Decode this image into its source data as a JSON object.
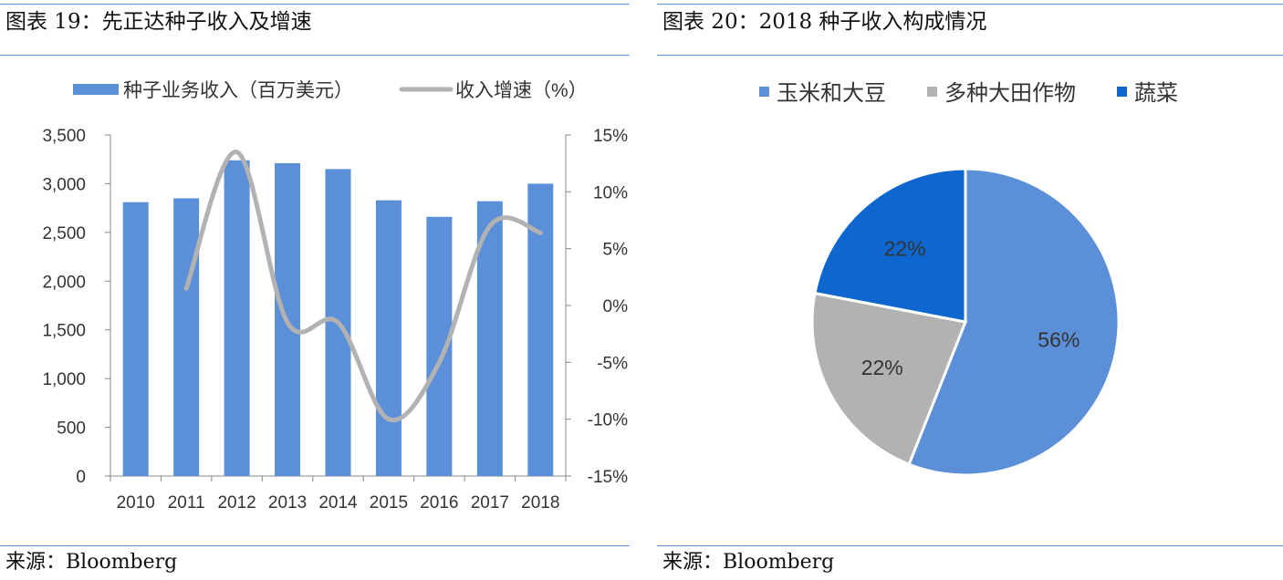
{
  "panels": [
    {
      "title": "图表 19：先正达种子收入及增速",
      "source": "来源：Bloomberg",
      "chart_data": {
        "type": "bar",
        "categories": [
          "2010",
          "2011",
          "2012",
          "2013",
          "2014",
          "2015",
          "2016",
          "2017",
          "2018"
        ],
        "series": [
          {
            "name": "种子业务收入（百万美元）",
            "type": "bar",
            "axis": "left",
            "color": "#5B8FD7",
            "values": [
              2810,
              2850,
              3240,
              3210,
              3150,
              2830,
              2660,
              2820,
              3000
            ]
          },
          {
            "name": "收入增速（%）",
            "type": "line",
            "axis": "right",
            "color": "#B2B2B2",
            "values": [
              null,
              1.5,
              13.5,
              -1.5,
              -1.5,
              -10.0,
              -5.0,
              7.0,
              6.4
            ]
          }
        ],
        "y_left": {
          "min": 0,
          "max": 3500,
          "ticks": [
            "0",
            "500",
            "1,000",
            "1,500",
            "2,000",
            "2,500",
            "3,000",
            "3,500"
          ]
        },
        "y_right": {
          "min": -15,
          "max": 15,
          "ticks": [
            "-15%",
            "-10%",
            "-5%",
            "0%",
            "5%",
            "10%",
            "15%"
          ]
        },
        "legend": "top"
      }
    },
    {
      "title": "图表 20：2018 种子收入构成情况",
      "source": "来源：Bloomberg",
      "chart_data": {
        "type": "pie",
        "slices": [
          {
            "name": "玉米和大豆",
            "value": 56,
            "label": "56%",
            "color": "#5B8FD7"
          },
          {
            "name": "多种大田作物",
            "value": 22,
            "label": "22%",
            "color": "#B2B2B2"
          },
          {
            "name": "蔬菜",
            "value": 22,
            "label": "22%",
            "color": "#0E67CF"
          }
        ],
        "legend": "top"
      }
    }
  ]
}
